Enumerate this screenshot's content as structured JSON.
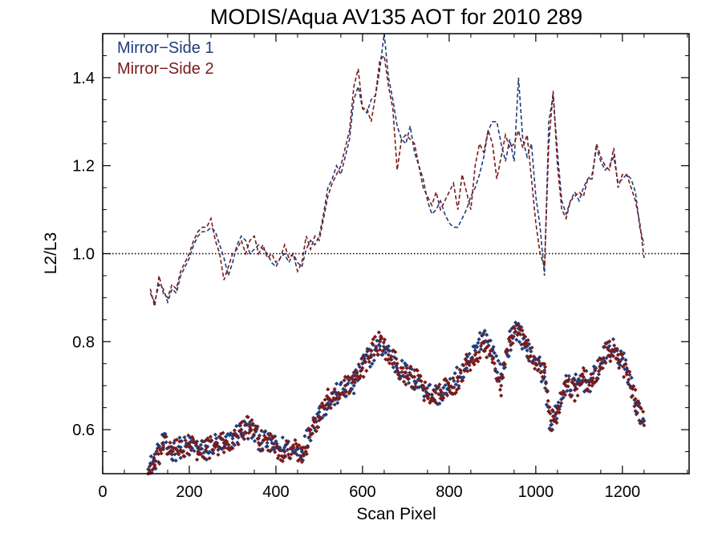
{
  "chart_data": {
    "type": "line",
    "title": "MODIS/Aqua AV135 AOT for 2010 289",
    "xlabel": "Scan Pixel",
    "ylabel": "L2/L3",
    "xlim": [
      0,
      1354
    ],
    "ylim": [
      0.5,
      1.5
    ],
    "x_ticks": [
      0,
      200,
      400,
      600,
      800,
      1000,
      1200
    ],
    "y_ticks": [
      0.6,
      0.8,
      1.0,
      1.2,
      1.4
    ],
    "x_tick_labels": [
      "0",
      "200",
      "400",
      "600",
      "800",
      "1000",
      "1200"
    ],
    "y_tick_labels": [
      "0.6",
      "0.8",
      "1.0",
      "1.2",
      "1.4"
    ],
    "reference_line": {
      "y": 1.0,
      "style": "dotted",
      "color": "#000000"
    },
    "legend": {
      "position": "top-left"
    },
    "series": [
      {
        "name": "Mirror−Side 1",
        "color": "#1f3d7a",
        "style": "dashed",
        "x": [
          110,
          120,
          130,
          140,
          150,
          160,
          170,
          180,
          190,
          200,
          210,
          220,
          230,
          240,
          250,
          260,
          270,
          280,
          290,
          300,
          310,
          320,
          330,
          340,
          350,
          360,
          370,
          380,
          390,
          400,
          410,
          420,
          430,
          440,
          450,
          460,
          470,
          480,
          490,
          500,
          510,
          520,
          530,
          540,
          550,
          560,
          570,
          580,
          590,
          600,
          610,
          620,
          630,
          640,
          650,
          660,
          670,
          680,
          690,
          700,
          710,
          720,
          730,
          740,
          750,
          760,
          770,
          780,
          790,
          800,
          810,
          820,
          830,
          840,
          850,
          860,
          870,
          880,
          890,
          900,
          910,
          920,
          930,
          940,
          950,
          960,
          970,
          980,
          990,
          1000,
          1010,
          1020,
          1030,
          1040,
          1050,
          1060,
          1070,
          1080,
          1090,
          1100,
          1110,
          1120,
          1130,
          1140,
          1150,
          1160,
          1170,
          1180,
          1190,
          1200,
          1210,
          1220,
          1230,
          1240,
          1250
        ],
        "values": [
          0.91,
          0.89,
          0.93,
          0.92,
          0.89,
          0.92,
          0.91,
          0.95,
          0.97,
          0.99,
          1.02,
          1.04,
          1.05,
          1.05,
          1.06,
          1.05,
          1.02,
          0.99,
          0.95,
          0.98,
          1.02,
          1.04,
          1.03,
          1.0,
          1.01,
          1.02,
          1.01,
          1.0,
          0.98,
          0.97,
          0.99,
          1.0,
          0.98,
          1.0,
          0.98,
          0.97,
          1.01,
          1.03,
          1.02,
          1.04,
          1.09,
          1.15,
          1.17,
          1.2,
          1.18,
          1.22,
          1.26,
          1.35,
          1.38,
          1.33,
          1.32,
          1.35,
          1.36,
          1.42,
          1.5,
          1.4,
          1.35,
          1.29,
          1.26,
          1.25,
          1.29,
          1.23,
          1.2,
          1.17,
          1.12,
          1.09,
          1.1,
          1.12,
          1.09,
          1.07,
          1.06,
          1.06,
          1.08,
          1.1,
          1.13,
          1.15,
          1.18,
          1.22,
          1.28,
          1.3,
          1.3,
          1.25,
          1.21,
          1.26,
          1.21,
          1.4,
          1.26,
          1.22,
          1.25,
          1.13,
          1.06,
          0.95,
          1.3,
          1.36,
          1.23,
          1.12,
          1.09,
          1.12,
          1.14,
          1.12,
          1.15,
          1.17,
          1.18,
          1.24,
          1.21,
          1.19,
          1.2,
          1.22,
          1.16,
          1.17,
          1.18,
          1.17,
          1.14,
          1.06,
          1.02
        ]
      },
      {
        "name": "Mirror−Side 2",
        "color": "#7a1a1a",
        "style": "dashed",
        "x": [
          110,
          120,
          130,
          140,
          150,
          160,
          170,
          180,
          190,
          200,
          210,
          220,
          230,
          240,
          250,
          260,
          270,
          280,
          290,
          300,
          310,
          320,
          330,
          340,
          350,
          360,
          370,
          380,
          390,
          400,
          410,
          420,
          430,
          440,
          450,
          460,
          470,
          480,
          490,
          500,
          510,
          520,
          530,
          540,
          550,
          560,
          570,
          580,
          590,
          600,
          610,
          620,
          630,
          640,
          650,
          660,
          670,
          680,
          690,
          700,
          710,
          720,
          730,
          740,
          750,
          760,
          770,
          780,
          790,
          800,
          810,
          820,
          830,
          840,
          850,
          860,
          870,
          880,
          890,
          900,
          910,
          920,
          930,
          940,
          950,
          960,
          970,
          980,
          990,
          1000,
          1010,
          1020,
          1030,
          1040,
          1050,
          1060,
          1070,
          1080,
          1090,
          1100,
          1110,
          1120,
          1130,
          1140,
          1150,
          1160,
          1170,
          1180,
          1190,
          1200,
          1210,
          1220,
          1230,
          1240,
          1250
        ],
        "values": [
          0.92,
          0.88,
          0.95,
          0.91,
          0.9,
          0.93,
          0.92,
          0.96,
          0.98,
          1.0,
          1.03,
          1.05,
          1.06,
          1.06,
          1.08,
          1.03,
          1.0,
          0.94,
          0.97,
          1.0,
          1.01,
          1.03,
          1.0,
          1.03,
          1.04,
          1.0,
          1.02,
          0.99,
          1.0,
          0.98,
          0.99,
          1.02,
          0.99,
          1.0,
          0.96,
          0.98,
          1.04,
          1.01,
          1.04,
          1.03,
          1.08,
          1.13,
          1.16,
          1.18,
          1.2,
          1.24,
          1.28,
          1.38,
          1.42,
          1.33,
          1.33,
          1.3,
          1.36,
          1.44,
          1.45,
          1.38,
          1.33,
          1.19,
          1.26,
          1.27,
          1.26,
          1.25,
          1.2,
          1.15,
          1.13,
          1.11,
          1.14,
          1.1,
          1.12,
          1.14,
          1.16,
          1.1,
          1.18,
          1.14,
          1.1,
          1.2,
          1.25,
          1.23,
          1.28,
          1.25,
          1.17,
          1.22,
          1.27,
          1.24,
          1.25,
          1.28,
          1.24,
          1.27,
          1.17,
          1.07,
          1.0,
          0.97,
          1.25,
          1.37,
          1.2,
          1.1,
          1.08,
          1.12,
          1.13,
          1.14,
          1.13,
          1.17,
          1.17,
          1.25,
          1.22,
          1.2,
          1.19,
          1.24,
          1.15,
          1.18,
          1.18,
          1.15,
          1.12,
          1.07,
          0.99
        ]
      }
    ],
    "scatter_series": [
      {
        "name": "Mirror−Side 1",
        "color": "#1f3d7a",
        "x": [
          105,
          120,
          140,
          160,
          180,
          200,
          220,
          240,
          260,
          280,
          300,
          320,
          340,
          360,
          380,
          400,
          420,
          440,
          460,
          480,
          500,
          520,
          540,
          560,
          580,
          600,
          620,
          640,
          660,
          680,
          700,
          720,
          740,
          760,
          780,
          800,
          820,
          840,
          860,
          880,
          900,
          920,
          940,
          960,
          980,
          1000,
          1020,
          1035,
          1050,
          1070,
          1090,
          1110,
          1130,
          1150,
          1170,
          1190,
          1210,
          1230,
          1250
        ],
        "values": [
          0.51,
          0.53,
          0.57,
          0.55,
          0.56,
          0.56,
          0.56,
          0.55,
          0.57,
          0.56,
          0.58,
          0.6,
          0.6,
          0.58,
          0.57,
          0.56,
          0.56,
          0.55,
          0.55,
          0.6,
          0.64,
          0.66,
          0.68,
          0.69,
          0.7,
          0.75,
          0.77,
          0.79,
          0.78,
          0.74,
          0.73,
          0.71,
          0.7,
          0.68,
          0.68,
          0.69,
          0.72,
          0.74,
          0.78,
          0.82,
          0.78,
          0.72,
          0.8,
          0.83,
          0.78,
          0.76,
          0.72,
          0.6,
          0.65,
          0.7,
          0.7,
          0.71,
          0.71,
          0.75,
          0.79,
          0.77,
          0.74,
          0.66,
          0.62
        ]
      },
      {
        "name": "Mirror−Side 2",
        "color": "#7a1a1a",
        "x": [
          105,
          120,
          140,
          160,
          180,
          200,
          220,
          240,
          260,
          280,
          300,
          320,
          340,
          360,
          380,
          400,
          420,
          440,
          460,
          480,
          500,
          520,
          540,
          560,
          580,
          600,
          620,
          640,
          660,
          680,
          700,
          720,
          740,
          760,
          780,
          800,
          820,
          840,
          860,
          880,
          900,
          920,
          940,
          960,
          980,
          1000,
          1020,
          1035,
          1050,
          1070,
          1090,
          1110,
          1130,
          1150,
          1170,
          1190,
          1210,
          1230,
          1250
        ],
        "values": [
          0.5,
          0.52,
          0.56,
          0.56,
          0.55,
          0.57,
          0.55,
          0.56,
          0.56,
          0.57,
          0.57,
          0.6,
          0.61,
          0.57,
          0.58,
          0.56,
          0.55,
          0.56,
          0.54,
          0.59,
          0.63,
          0.67,
          0.67,
          0.7,
          0.71,
          0.74,
          0.78,
          0.8,
          0.77,
          0.75,
          0.72,
          0.72,
          0.69,
          0.67,
          0.69,
          0.7,
          0.71,
          0.75,
          0.77,
          0.8,
          0.76,
          0.7,
          0.81,
          0.82,
          0.79,
          0.75,
          0.73,
          0.62,
          0.64,
          0.71,
          0.69,
          0.72,
          0.7,
          0.76,
          0.78,
          0.76,
          0.73,
          0.67,
          0.61
        ]
      }
    ]
  }
}
